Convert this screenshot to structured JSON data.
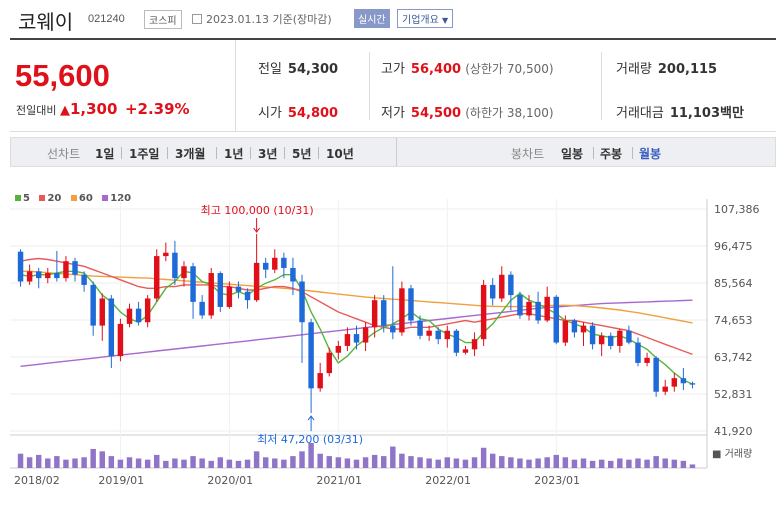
{
  "header": {
    "name": "코웨이",
    "code": "021240",
    "market": "코스피",
    "date_text": "2023.01.13 기준(장마감)",
    "realtime_label": "실시간",
    "company_label": "기업개요"
  },
  "summary": {
    "price": "55,600",
    "change_label": "전일대비",
    "change_amount": "1,300",
    "change_pct": "+2.39%",
    "prev_close_label": "전일",
    "prev_close": "54,300",
    "open_label": "시가",
    "open": "54,800",
    "high_label": "고가",
    "high": "56,400",
    "upper_limit_label": "상한가",
    "upper_limit": "70,500",
    "low_label": "저가",
    "low": "54,500",
    "lower_limit_label": "하한가",
    "lower_limit": "38,100",
    "volume_label": "거래량",
    "volume": "200,115",
    "amount_label": "거래대금",
    "amount": "11,103",
    "amount_unit": "백만"
  },
  "period_bar": {
    "line_chart_label": "선차트",
    "line_periods": [
      "1일",
      "1주일",
      "3개월",
      "1년",
      "3년",
      "5년",
      "10년"
    ],
    "candle_label": "봉차트",
    "candle_periods": [
      "일봉",
      "주봉",
      "월봉"
    ],
    "active_candle": "월봉"
  },
  "colors": {
    "up": "#e0101a",
    "down": "#1e6ad8",
    "ma5": "#55b53a",
    "ma20": "#e85a5a",
    "ma60": "#f0a040",
    "ma120": "#a56ad0",
    "volume": "#8f74c8"
  },
  "chart_data": {
    "type": "candlestick",
    "legend": [
      "5",
      "20",
      "60",
      "120"
    ],
    "y_ticks": [
      "107,386",
      "96,475",
      "85,564",
      "74,653",
      "63,742",
      "52,831",
      "41,920"
    ],
    "ylim": [
      41920,
      107386
    ],
    "x_ticks": [
      "2018/02",
      "2019/01",
      "2020/01",
      "2021/01",
      "2022/01",
      "2023/01"
    ],
    "volume_label": "거래량",
    "annotation_high": "최고 100,000 (10/31)",
    "annotation_low": "최저 47,200 (03/31)",
    "candles": [
      [
        94800,
        86000,
        95500,
        84500
      ],
      [
        86000,
        89000,
        91000,
        85000
      ],
      [
        89000,
        87000,
        90000,
        84000
      ],
      [
        87000,
        88500,
        90000,
        85500
      ],
      [
        88500,
        87000,
        95000,
        86000
      ],
      [
        87000,
        92000,
        93500,
        86000
      ],
      [
        92000,
        88000,
        93000,
        86000
      ],
      [
        88000,
        85000,
        89000,
        83000
      ],
      [
        85000,
        73000,
        86000,
        70000
      ],
      [
        73000,
        81000,
        82500,
        68500
      ],
      [
        81000,
        64000,
        82000,
        60500
      ],
      [
        64000,
        73500,
        75000,
        62500
      ],
      [
        73500,
        78000,
        79500,
        72500
      ],
      [
        78000,
        74000,
        80000,
        73000
      ],
      [
        74000,
        81000,
        82000,
        72500
      ],
      [
        81000,
        93500,
        95500,
        80000
      ],
      [
        93500,
        94500,
        97500,
        92000
      ],
      [
        94500,
        87000,
        98000,
        85000
      ],
      [
        87000,
        90500,
        92000,
        84500
      ],
      [
        90500,
        80000,
        91500,
        75000
      ],
      [
        80000,
        76000,
        82000,
        75000
      ],
      [
        76000,
        88500,
        90000,
        75000
      ],
      [
        88500,
        78500,
        89000,
        77000
      ],
      [
        78500,
        84500,
        86000,
        78000
      ],
      [
        84500,
        83000,
        86000,
        81000
      ],
      [
        83000,
        80500,
        84000,
        78000
      ],
      [
        80500,
        91500,
        100000,
        80000
      ],
      [
        91500,
        89500,
        93000,
        87000
      ],
      [
        89500,
        93000,
        95500,
        88500
      ],
      [
        93000,
        90000,
        94500,
        87000
      ],
      [
        90000,
        86000,
        93000,
        82000
      ],
      [
        86000,
        74000,
        88000,
        62000
      ],
      [
        74000,
        54500,
        75000,
        47200
      ],
      [
        54500,
        59000,
        62000,
        53500
      ],
      [
        59000,
        65000,
        66500,
        58000
      ],
      [
        65000,
        67000,
        68500,
        63000
      ],
      [
        67000,
        70500,
        72500,
        65500
      ],
      [
        70500,
        68000,
        73000,
        66000
      ],
      [
        68000,
        72500,
        74000,
        65500
      ],
      [
        72500,
        80500,
        82000,
        69500
      ],
      [
        80500,
        73000,
        82000,
        71000
      ],
      [
        73000,
        71000,
        90500,
        69000
      ],
      [
        71000,
        84000,
        86000,
        70000
      ],
      [
        84000,
        74500,
        85000,
        73000
      ],
      [
        74500,
        70000,
        76000,
        69000
      ],
      [
        70000,
        71500,
        73000,
        68500
      ],
      [
        71500,
        69000,
        72500,
        67500
      ],
      [
        69000,
        71500,
        73000,
        66500
      ],
      [
        71500,
        65000,
        72000,
        64000
      ],
      [
        65000,
        66000,
        67000,
        64500
      ],
      [
        66000,
        69000,
        71000,
        64000
      ],
      [
        69000,
        85000,
        86500,
        67000
      ],
      [
        85000,
        81000,
        87000,
        79000
      ],
      [
        81000,
        88000,
        90500,
        80000
      ],
      [
        88000,
        82000,
        89000,
        77500
      ],
      [
        82000,
        76000,
        83000,
        75000
      ],
      [
        76000,
        80000,
        82000,
        74500
      ],
      [
        80000,
        74500,
        83000,
        73500
      ],
      [
        74500,
        81500,
        84500,
        74000
      ],
      [
        81500,
        68000,
        82000,
        67500
      ],
      [
        68000,
        74500,
        76000,
        67000
      ],
      [
        74500,
        71000,
        75000,
        69500
      ],
      [
        71000,
        73000,
        74000,
        67000
      ],
      [
        73000,
        67500,
        74000,
        66000
      ],
      [
        67500,
        70000,
        71000,
        64000
      ],
      [
        70000,
        67000,
        71000,
        66000
      ],
      [
        67000,
        71500,
        72000,
        65000
      ],
      [
        71500,
        68000,
        73000,
        67500
      ],
      [
        68000,
        62000,
        69500,
        61000
      ],
      [
        62000,
        63500,
        65000,
        61000
      ],
      [
        63500,
        53500,
        64000,
        52000
      ],
      [
        53500,
        55000,
        57000,
        52500
      ],
      [
        55000,
        57500,
        59000,
        53500
      ],
      [
        57500,
        56000,
        60500,
        54000
      ],
      [
        56000,
        55600,
        56500,
        54500
      ]
    ],
    "volumes": [
      12,
      9,
      11,
      8,
      10,
      7,
      8,
      9,
      16,
      14,
      10,
      7,
      9,
      8,
      7,
      11,
      6,
      8,
      7,
      10,
      8,
      6,
      9,
      7,
      6,
      7,
      14,
      9,
      8,
      7,
      10,
      14,
      21,
      12,
      10,
      9,
      8,
      7,
      9,
      11,
      10,
      18,
      12,
      10,
      9,
      8,
      7,
      9,
      8,
      7,
      9,
      17,
      12,
      10,
      9,
      8,
      7,
      8,
      9,
      11,
      9,
      7,
      8,
      6,
      7,
      6,
      8,
      7,
      8,
      7,
      10,
      8,
      7,
      6,
      3
    ],
    "ma5": [
      88000,
      87500,
      88000,
      88000,
      88500,
      89000,
      89000,
      88500,
      85500,
      82000,
      80000,
      77000,
      75000,
      74000,
      76000,
      80000,
      84000,
      86000,
      89000,
      88500,
      86000,
      85000,
      82500,
      82000,
      83000,
      82000,
      84000,
      85500,
      86500,
      88000,
      88000,
      83500,
      77000,
      72000,
      66000,
      62000,
      64000,
      67000,
      69000,
      71000,
      72500,
      73500,
      75000,
      77000,
      75000,
      74500,
      72000,
      70500,
      69500,
      68000,
      68000,
      71000,
      73500,
      77000,
      80500,
      82500,
      80500,
      79500,
      78000,
      76500,
      74500,
      73500,
      72500,
      70500,
      70000,
      69500,
      70000,
      69000,
      67500,
      66000,
      63500,
      61500,
      59000,
      57000,
      55700
    ],
    "ma20": [
      92000,
      92500,
      92800,
      92500,
      92000,
      91500,
      91000,
      90500,
      89500,
      88500,
      87500,
      86500,
      85500,
      84500,
      84000,
      84000,
      84500,
      84500,
      85000,
      85000,
      85000,
      85000,
      84500,
      84500,
      84000,
      83500,
      83500,
      84000,
      84500,
      84500,
      84000,
      83000,
      81500,
      80000,
      78500,
      77000,
      76000,
      75000,
      74000,
      73000,
      72500,
      72000,
      72000,
      72500,
      72500,
      72500,
      73000,
      73500,
      74000,
      74500,
      74000,
      74500,
      75000,
      75500,
      76000,
      76500,
      76500,
      76000,
      75500,
      75000,
      74500,
      74500,
      74000,
      73500,
      73000,
      72500,
      72000,
      71500,
      70500,
      69500,
      68500,
      67500,
      66500,
      65500,
      64500
    ],
    "ma60": [
      89000,
      89000,
      88800,
      88600,
      88400,
      88200,
      88000,
      87800,
      87600,
      87500,
      87400,
      87300,
      87200,
      87100,
      87000,
      86800,
      86600,
      86400,
      86200,
      86000,
      85800,
      85600,
      85400,
      85200,
      85000,
      84800,
      84600,
      84400,
      84200,
      84000,
      83800,
      83500,
      83200,
      82900,
      82600,
      82300,
      82000,
      81700,
      81400,
      81200,
      81000,
      80800,
      80600,
      80400,
      80200,
      80000,
      79800,
      79600,
      79400,
      79200,
      79000,
      78800,
      78700,
      78600,
      78600,
      78600,
      78700,
      78800,
      78900,
      79000,
      79000,
      78900,
      78700,
      78500,
      78200,
      77900,
      77600,
      77200,
      76800,
      76300,
      75800,
      75300,
      74800,
      74300,
      73800
    ],
    "ma120": [
      61000,
      61300,
      61600,
      61900,
      62200,
      62500,
      62800,
      63100,
      63400,
      63700,
      64000,
      64300,
      64600,
      64900,
      65200,
      65500,
      65800,
      66100,
      66400,
      66700,
      67000,
      67300,
      67600,
      67900,
      68200,
      68500,
      68800,
      69100,
      69400,
      69700,
      70000,
      70300,
      70600,
      70900,
      71200,
      71500,
      71800,
      72100,
      72400,
      72700,
      73000,
      73300,
      73600,
      73900,
      74200,
      74500,
      74800,
      75100,
      75400,
      75700,
      76000,
      76300,
      76600,
      76900,
      77200,
      77500,
      77800,
      78100,
      78300,
      78500,
      78700,
      78900,
      79100,
      79300,
      79500,
      79600,
      79700,
      79800,
      79900,
      80000,
      80100,
      80200,
      80300,
      80400,
      80500
    ]
  }
}
